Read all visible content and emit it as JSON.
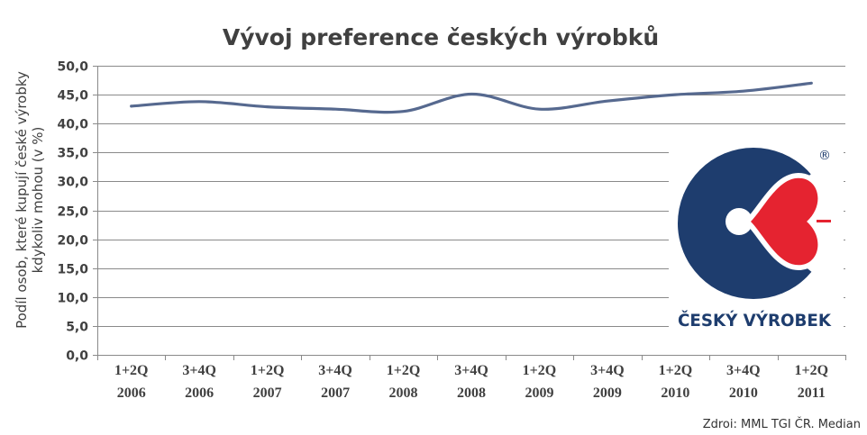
{
  "chart_data": {
    "type": "line",
    "title": "Vývoj preference českých výrobků",
    "ylabel_lines": [
      "Podíl osob, které kupují české výrobky",
      "kdykoliv mohou (v %)"
    ],
    "xlabel": "",
    "categories": [
      "1+2Q 2006",
      "3+4Q 2006",
      "1+2Q 2007",
      "3+4Q 2007",
      "1+2Q 2008",
      "3+4Q 2008",
      "1+2Q 2009",
      "3+4Q 2009",
      "1+2Q 2010",
      "3+4Q 2010",
      "1+2Q 2011"
    ],
    "yticks": [
      "0,0",
      "5,0",
      "10,0",
      "15,0",
      "20,0",
      "25,0",
      "30,0",
      "35,0",
      "40,0",
      "45,0",
      "50,0"
    ],
    "ylim": [
      0,
      50
    ],
    "grid": true,
    "legend": "none",
    "smoothed": true,
    "series": [
      {
        "values": [
          43.0,
          43.8,
          42.9,
          42.5,
          42.1,
          45.1,
          42.5,
          43.9,
          45.0,
          45.6,
          47.0
        ],
        "color": "#56698f"
      }
    ]
  },
  "logo": {
    "text": "ČESKÝ VÝROBEK",
    "registered": "®",
    "navy": "#1e3d6e",
    "red": "#e52330"
  },
  "source": "Zdroi: MML TGI ČR. Median"
}
